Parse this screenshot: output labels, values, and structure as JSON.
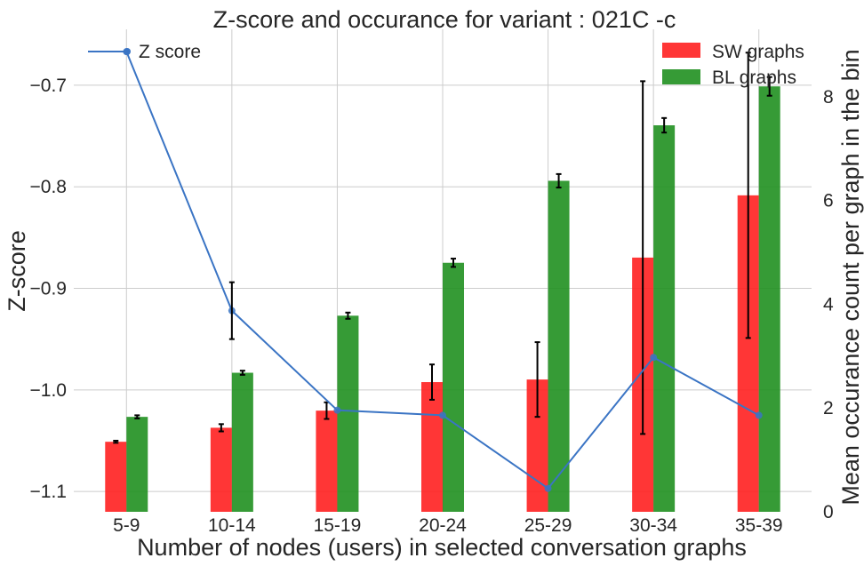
{
  "chart_data": {
    "type": "bar",
    "title": "Z-score and occurance for variant : 021C -c",
    "xlabel": "Number of nodes (users) in selected conversation graphs",
    "ylabel": "Z-score",
    "y2label": "Mean occurance count per graph in the bin",
    "categories": [
      "5-9",
      "10-14",
      "15-19",
      "20-24",
      "25-29",
      "30-34",
      "35-39"
    ],
    "ylim": [
      -1.12,
      -0.645
    ],
    "yticks": [
      -0.7,
      -0.8,
      -0.9,
      -1.0,
      -1.1
    ],
    "ytick_labels": [
      "−0.7",
      "−0.8",
      "−0.9",
      "−1.0",
      "−1.1"
    ],
    "y2lim": [
      0,
      9.3
    ],
    "y2ticks": [
      0,
      2,
      4,
      6,
      8
    ],
    "y2tick_labels": [
      "0",
      "2",
      "4",
      "6",
      "8"
    ],
    "grid": true,
    "legend_placement": [
      "top-left",
      "top-right"
    ],
    "line_series": {
      "name": "Z score",
      "axis": "left",
      "color": "#3a74c4",
      "values": [
        -0.667,
        -0.922,
        -1.02,
        -1.025,
        -1.097,
        -0.968,
        -1.025
      ],
      "errors": [
        null,
        0.028,
        null,
        null,
        null,
        null,
        null
      ]
    },
    "bar_series": [
      {
        "name": "SW graphs",
        "axis": "right",
        "color": "#ff2020",
        "values": [
          1.35,
          1.62,
          1.95,
          2.5,
          2.55,
          4.9,
          6.1
        ],
        "errors": [
          0.02,
          0.07,
          0.16,
          0.34,
          0.72,
          3.4,
          2.75
        ]
      },
      {
        "name": "BL graphs",
        "axis": "right",
        "color": "#209020",
        "values": [
          1.83,
          2.68,
          3.78,
          4.8,
          6.38,
          7.45,
          8.2
        ],
        "errors": [
          0.03,
          0.04,
          0.06,
          0.08,
          0.13,
          0.14,
          0.18
        ]
      }
    ]
  }
}
